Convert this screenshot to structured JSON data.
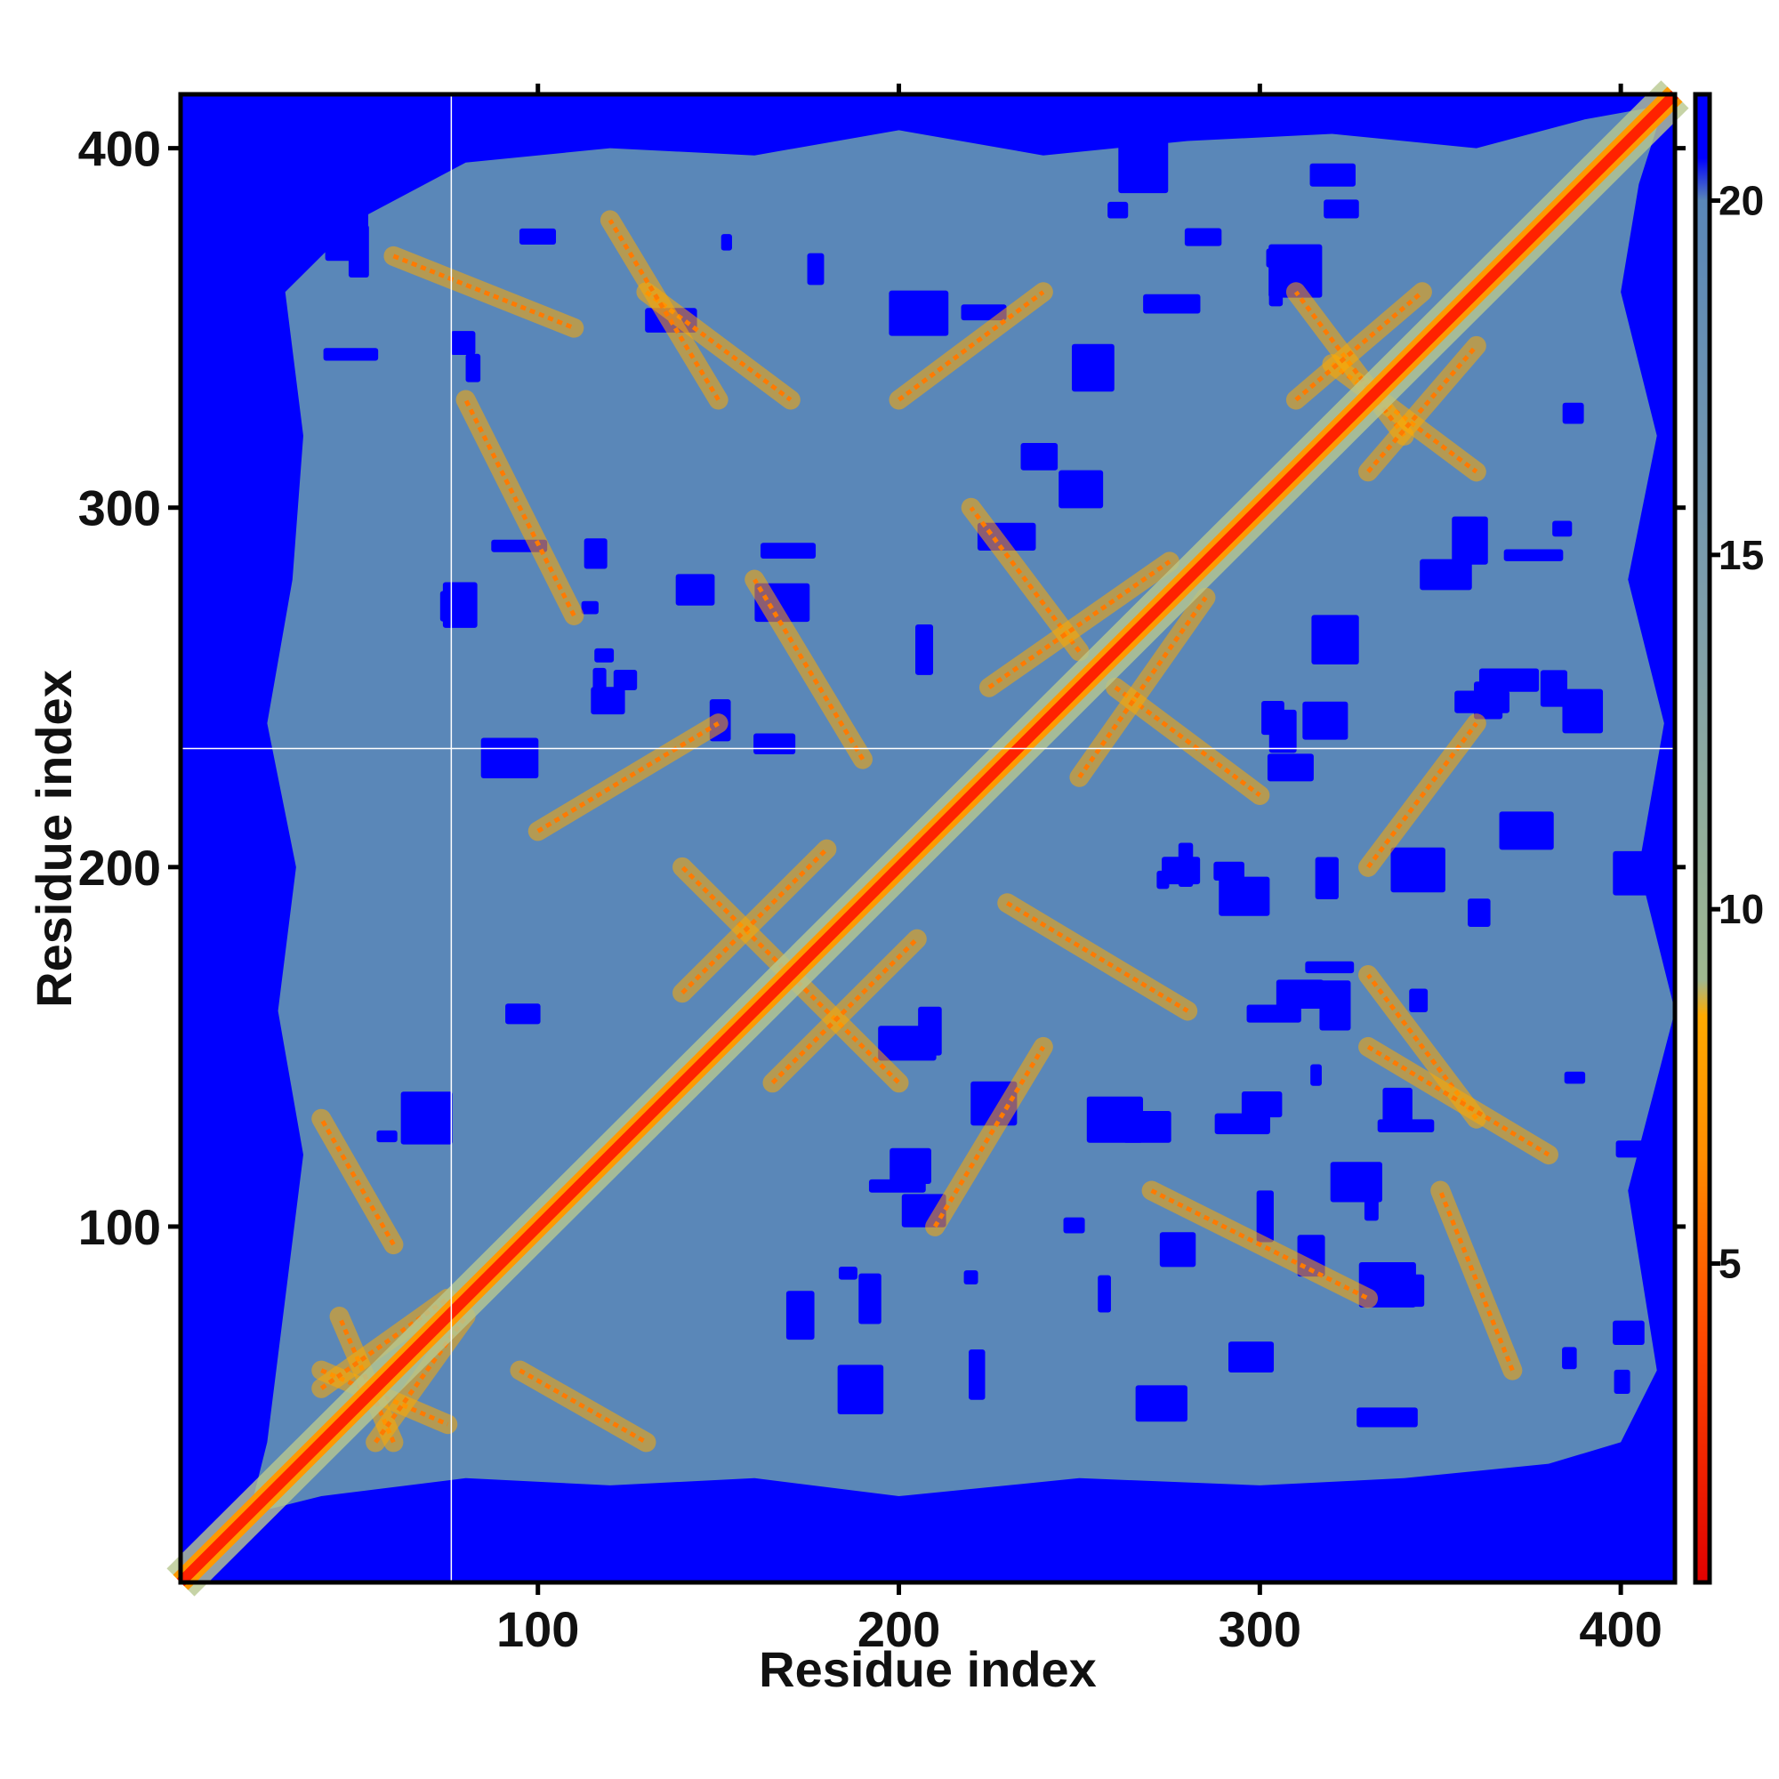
{
  "chart_data": {
    "type": "heatmap",
    "title": "",
    "xlabel": "Residue index",
    "ylabel": "Residue index",
    "xlim": [
      1,
      415
    ],
    "ylim": [
      1,
      415
    ],
    "x_ticks": [
      100,
      200,
      300,
      400
    ],
    "y_ticks": [
      100,
      200,
      300,
      400
    ],
    "colorbar": {
      "range": [
        0.5,
        21.5
      ],
      "ticks": [
        5,
        10,
        15,
        20
      ],
      "stops": [
        {
          "value": 0.5,
          "color": "#e00000"
        },
        {
          "value": 4.0,
          "color": "#ff4a00"
        },
        {
          "value": 6.5,
          "color": "#ff8c00"
        },
        {
          "value": 8.5,
          "color": "#ffaa00"
        },
        {
          "value": 9.0,
          "color": "#9fb890"
        },
        {
          "value": 14.0,
          "color": "#7f9faa"
        },
        {
          "value": 20.0,
          "color": "#5a87b8"
        },
        {
          "value": 20.6,
          "color": "#0000ff"
        },
        {
          "value": 21.5,
          "color": "#0000ff"
        }
      ]
    },
    "cell_value_range": [
      0,
      21
    ],
    "matrix": "pairwise residue distance map, symmetric, low values along the diagonal, saturated blue (≥21) in the outer regions",
    "grid": false,
    "legend": "colorbar right",
    "reference_lines": {
      "x": 76,
      "y": 233
    }
  },
  "colors": {
    "background": "#0000ff",
    "contact": "#ff2200",
    "mid": "#ffaa00",
    "far": "#5a87b8",
    "axis": "#000000"
  }
}
